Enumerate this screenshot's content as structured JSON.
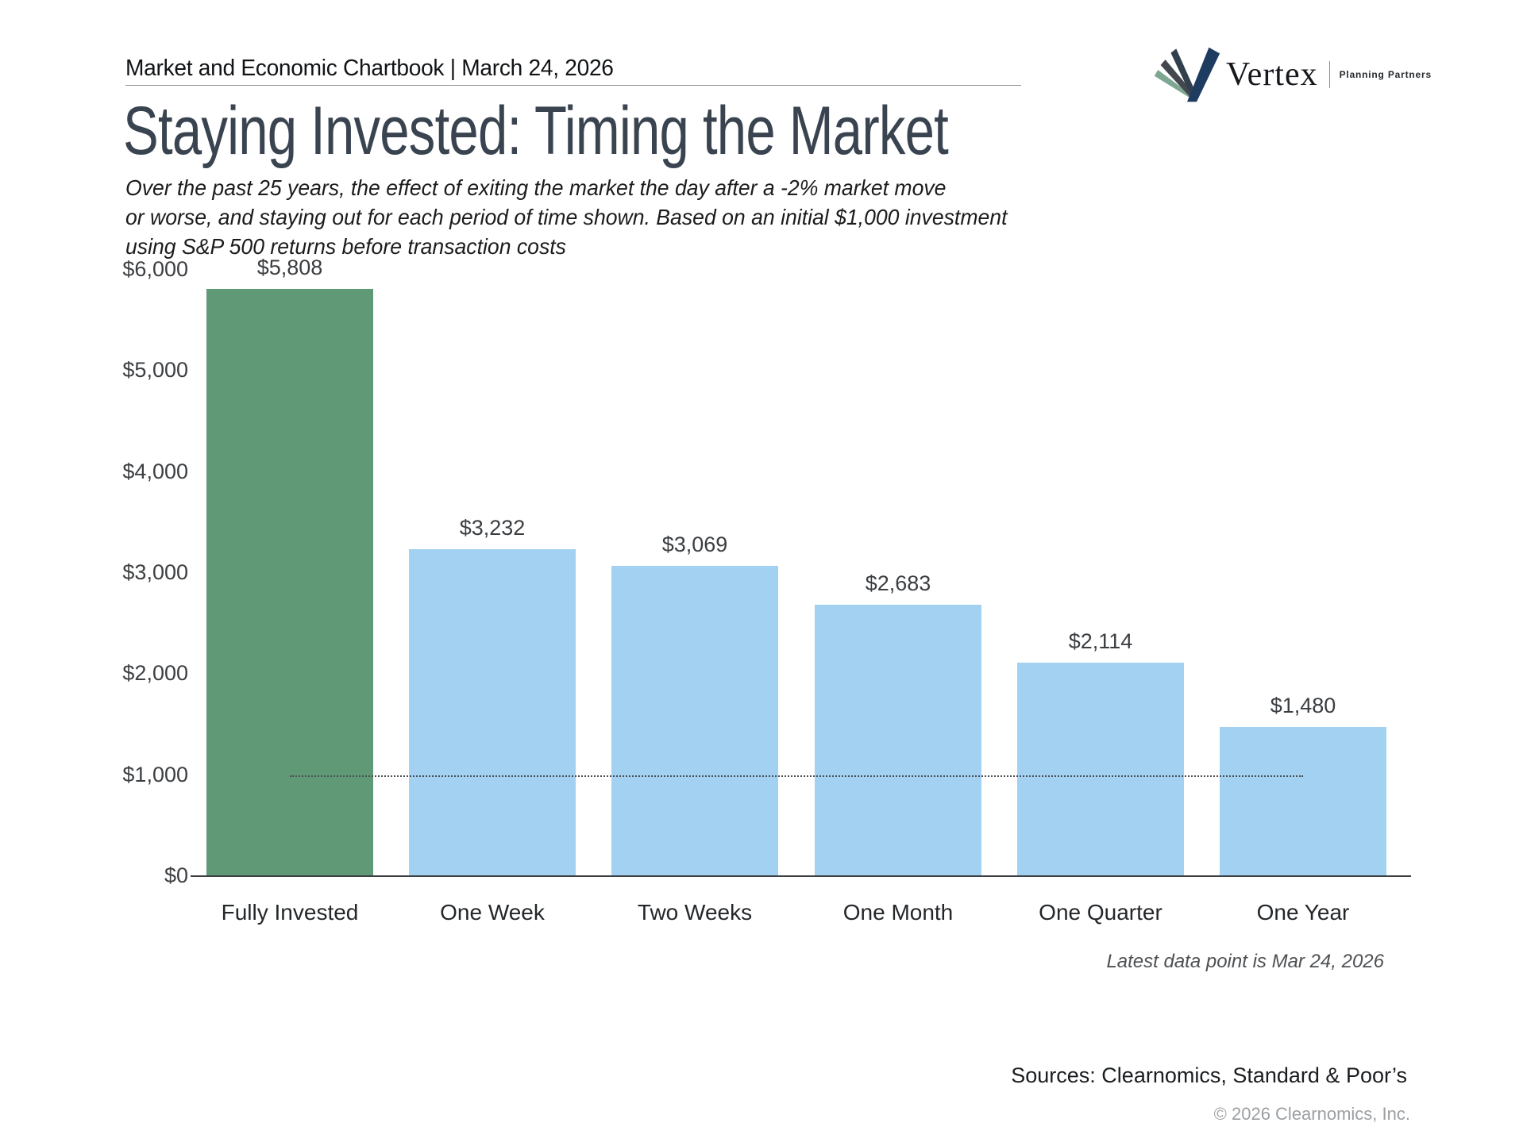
{
  "header": {
    "title": "Market and Economic Chartbook | March 24, 2026"
  },
  "logo": {
    "brand": "Vertex",
    "tagline": "Planning Partners",
    "colors": {
      "green_stripe": "#7da693",
      "charcoal_stripe": "#43484f",
      "slate_stripe": "#32404e",
      "navy_arm": "#1d3c5f"
    }
  },
  "title": "Staying Invested: Timing the Market",
  "subtitle": "Over the past 25 years, the effect of exiting the market the day after a -2% market move\nor worse, and staying out for each period of time shown. Based on an initial $1,000 investment\nusing S&P 500 returns before transaction costs",
  "footnote": "Latest data point is Mar 24, 2026",
  "sources": "Sources: Clearnomics, Standard & Poor’s",
  "copyright": "© 2026 Clearnomics, Inc.",
  "chart_data": {
    "type": "bar",
    "categories": [
      "Fully Invested",
      "One Week",
      "Two Weeks",
      "One Month",
      "One Quarter",
      "One Year"
    ],
    "values": [
      5808,
      3232,
      3069,
      2683,
      2114,
      1480
    ],
    "value_labels": [
      "$5,808",
      "$3,232",
      "$3,069",
      "$2,683",
      "$2,114",
      "$1,480"
    ],
    "bar_colors": [
      "#5f9976",
      "#a3d1f2",
      "#a3d1f2",
      "#a3d1f2",
      "#a3d1f2",
      "#a3d1f2"
    ],
    "y_ticks": [
      "$0",
      "$1,000",
      "$2,000",
      "$3,000",
      "$4,000",
      "$5,000",
      "$6,000"
    ],
    "y_tick_step": 1000,
    "ylim": [
      0,
      6000
    ],
    "xlabel": "",
    "ylabel": "",
    "grid": false,
    "legend": false,
    "reference_line": {
      "value": 1000,
      "style": "dotted"
    }
  }
}
